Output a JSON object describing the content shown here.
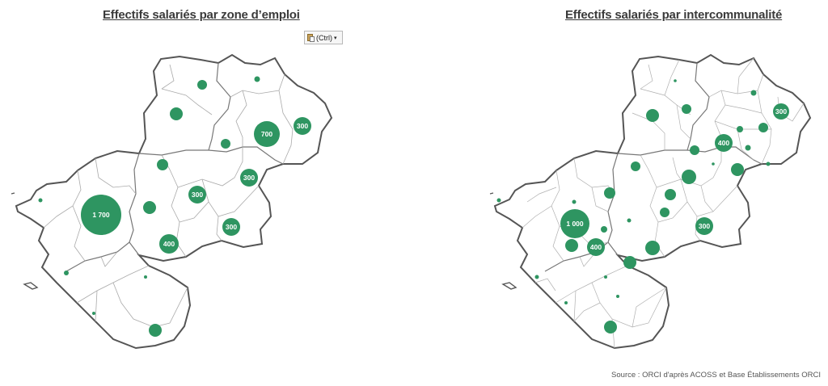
{
  "titles": {
    "left": "Effectifs salariés par zone d’emploi",
    "right": "Effectifs salariés par intercommunalité"
  },
  "paste_options": {
    "label": "(Ctrl)",
    "icon": "paste-clipboard-icon"
  },
  "source": "Source : ORCI d'après ACOSS et Base Établissements ORCI",
  "colors": {
    "bubble": "#2e9561",
    "outline": "#555555",
    "inner_border": "#9a9a9a",
    "background": "#ffffff"
  },
  "legend_labels": {
    "left": [
      "1 700",
      "700",
      "400",
      "300",
      "300",
      "300",
      "300"
    ],
    "right": [
      "1 000",
      "400",
      "400",
      "300",
      "300"
    ]
  }
}
